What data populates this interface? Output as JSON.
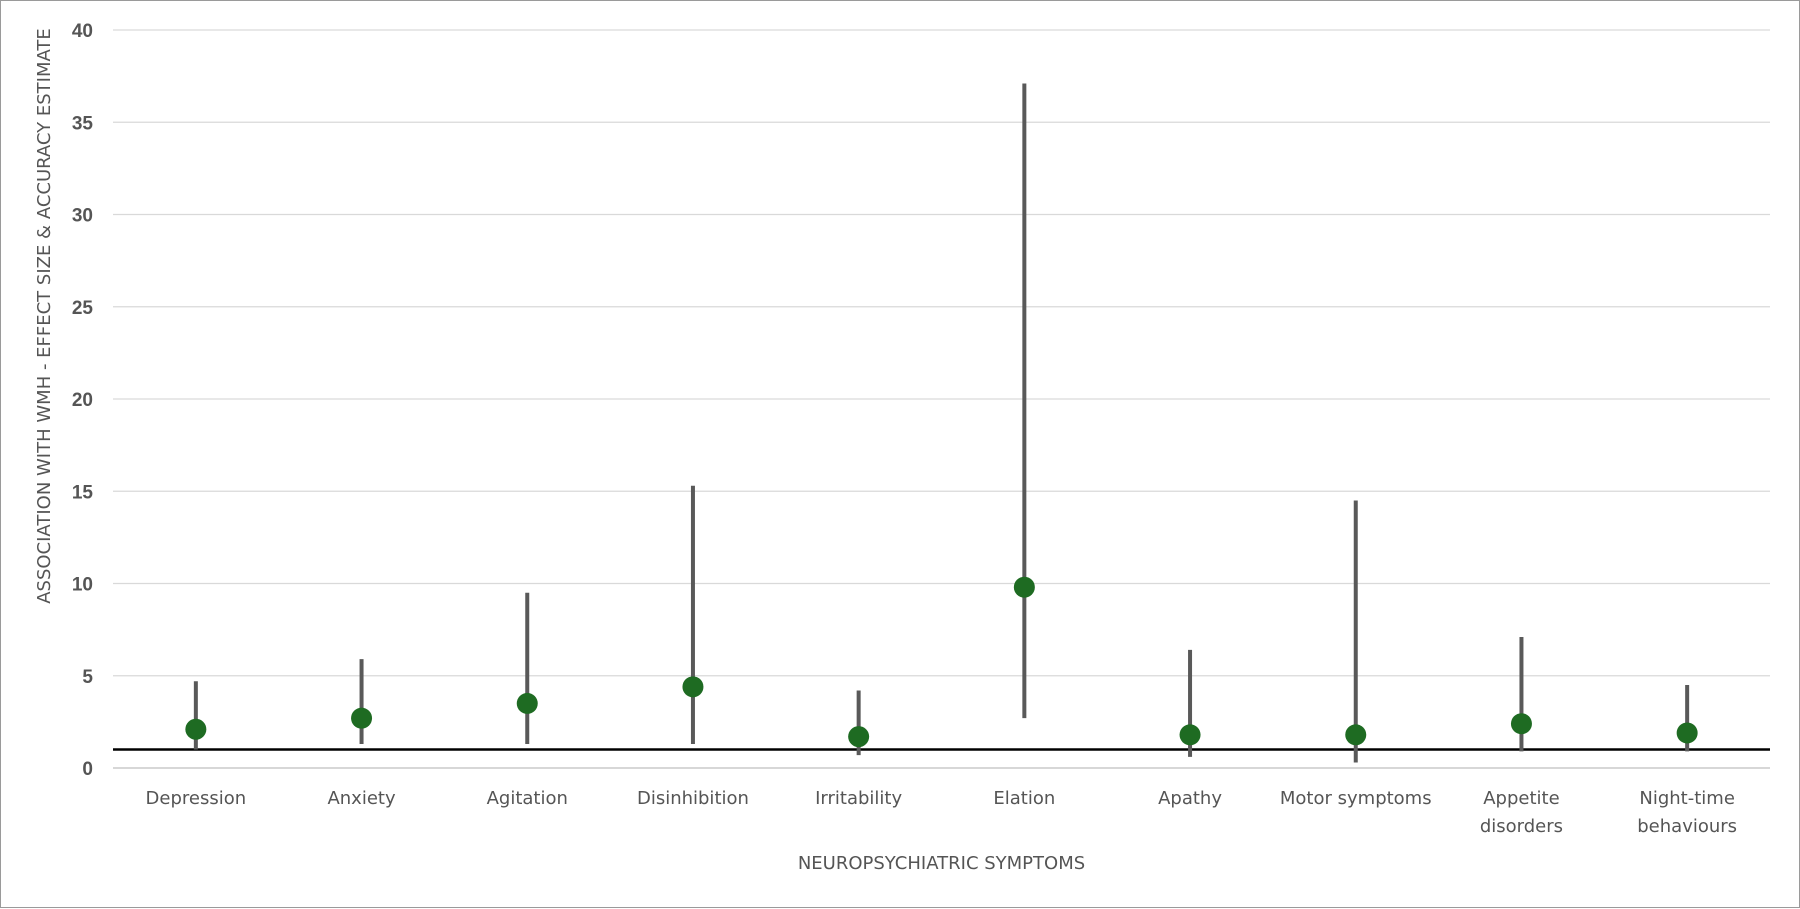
{
  "chart_data": {
    "type": "scatter",
    "title": "",
    "xlabel": "NEUROPSYCHIATRIC SYMPTOMS",
    "ylabel": "ASSOCIATION WITH WMH - EFFECT SIZE & ACCURACY ESTIMATE",
    "ylim": [
      0,
      40
    ],
    "yticks": [
      "0",
      "5",
      "10",
      "15",
      "20",
      "25",
      "30",
      "35",
      "40"
    ],
    "grid": true,
    "reference_line": 1,
    "categories": [
      [
        "Depression"
      ],
      [
        "Anxiety"
      ],
      [
        "Agitation"
      ],
      [
        "Disinhibition"
      ],
      [
        "Irritability"
      ],
      [
        "Elation"
      ],
      [
        "Apathy"
      ],
      [
        "Motor symptoms"
      ],
      [
        "Appetite",
        "disorders"
      ],
      [
        "Night-time",
        "behaviours"
      ]
    ],
    "series": [
      {
        "values": [
          2.1,
          2.7,
          3.5,
          4.4,
          1.7,
          9.8,
          1.8,
          1.8,
          2.4,
          1.9
        ],
        "lower": [
          1.0,
          1.3,
          1.3,
          1.3,
          0.7,
          2.7,
          0.6,
          0.3,
          0.9,
          0.9
        ],
        "upper": [
          4.7,
          5.9,
          9.5,
          15.3,
          4.2,
          37.1,
          6.4,
          14.5,
          7.1,
          4.5
        ]
      }
    ],
    "colors": {
      "point": "#1e6b22",
      "whisker": "#595959",
      "reference": "#000000",
      "grid": "#d9d9d9",
      "axis": "#bfbfbf"
    }
  }
}
